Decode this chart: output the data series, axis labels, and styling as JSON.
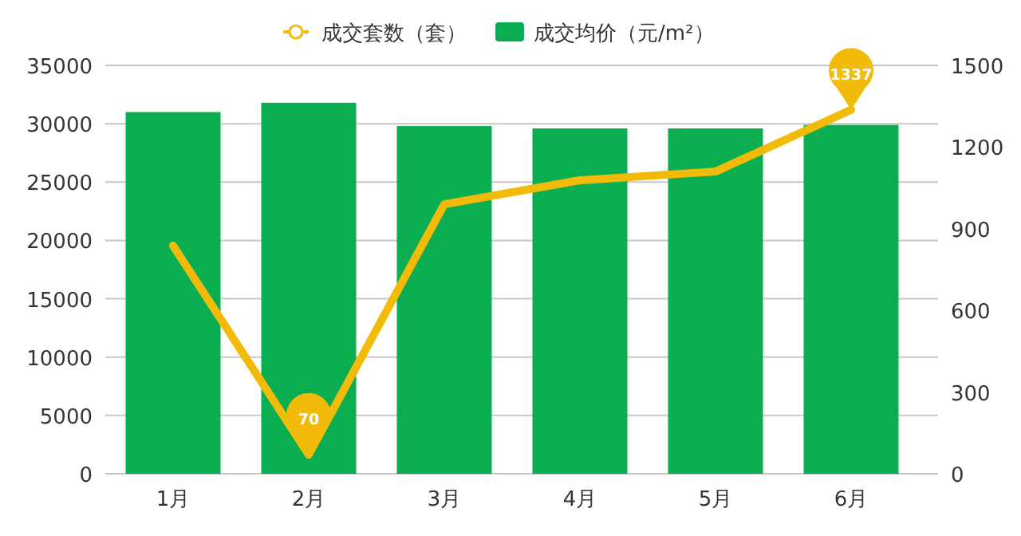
{
  "chart_data": {
    "type": "bar",
    "categories": [
      "1月",
      "2月",
      "3月",
      "4月",
      "5月",
      "6月"
    ],
    "series": [
      {
        "name": "成交套数（套）",
        "type": "line",
        "axis": "y2",
        "color": "#f2bb0a",
        "values": [
          838,
          70,
          990,
          1078,
          1110,
          1337
        ],
        "value_labels": [
          null,
          "70",
          null,
          null,
          null,
          "1337"
        ]
      },
      {
        "name": "成交均价（元/m²）",
        "color": "#0aad4f",
        "values": [
          31000,
          31800,
          29800,
          29600,
          29600,
          29900
        ]
      }
    ],
    "ylim": [
      0,
      35000
    ],
    "yticks": [
      0,
      5000,
      10000,
      15000,
      20000,
      25000,
      30000,
      35000
    ],
    "y2lim": [
      0,
      1500
    ],
    "y2ticks": [
      0,
      300,
      600,
      900,
      1200,
      1500
    ],
    "grid": "y",
    "legend": "top",
    "marker": "none"
  }
}
